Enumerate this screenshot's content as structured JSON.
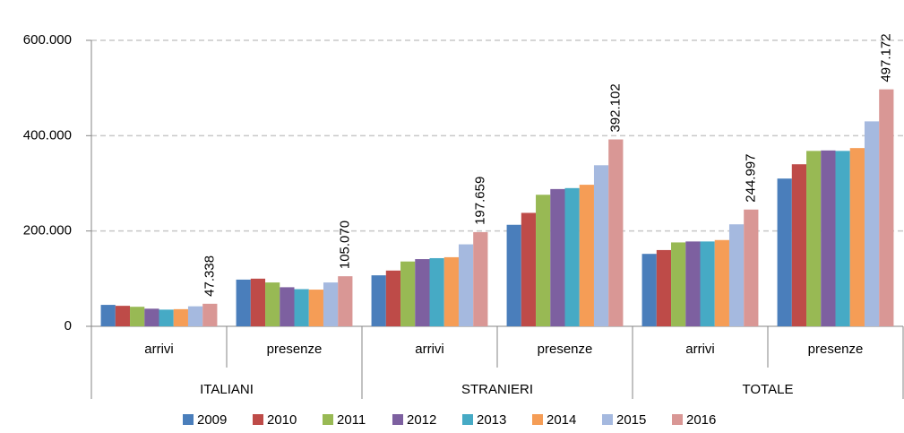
{
  "chart_data": {
    "type": "bar",
    "groups": [
      "ITALIANI",
      "STRANIERI",
      "TOTALE"
    ],
    "categories": [
      "arrivi",
      "presenze",
      "arrivi",
      "presenze",
      "arrivi",
      "presenze"
    ],
    "series": [
      {
        "name": "2009",
        "color": "#4a7ebb",
        "values": [
          45000,
          98000,
          107000,
          213000,
          152000,
          310000
        ]
      },
      {
        "name": "2010",
        "color": "#be4b48",
        "values": [
          43000,
          100000,
          117000,
          238000,
          160000,
          340000
        ]
      },
      {
        "name": "2011",
        "color": "#98b954",
        "values": [
          41000,
          92000,
          136000,
          276000,
          176000,
          368000
        ]
      },
      {
        "name": "2012",
        "color": "#7d60a0",
        "values": [
          37000,
          82000,
          141000,
          288000,
          178000,
          369000
        ]
      },
      {
        "name": "2013",
        "color": "#46aac5",
        "values": [
          35000,
          78000,
          143000,
          290000,
          178000,
          368000
        ]
      },
      {
        "name": "2014",
        "color": "#f59d56",
        "values": [
          36000,
          77000,
          145000,
          297000,
          181000,
          374000
        ]
      },
      {
        "name": "2015",
        "color": "#a5b9df",
        "values": [
          42000,
          92000,
          172000,
          338000,
          214000,
          430000
        ]
      },
      {
        "name": "2016",
        "color": "#d99795",
        "values": [
          47338,
          105070,
          197659,
          392102,
          244997,
          497172
        ],
        "value_labels": [
          "47.338",
          "105.070",
          "197.659",
          "392.102",
          "244.997",
          "497.172"
        ]
      }
    ],
    "ylim": [
      0,
      600000
    ],
    "yticks": [
      0,
      {
        "value": 200000,
        "label": "200.000"
      },
      {
        "value": 400000,
        "label": "400.000"
      },
      {
        "value": 600000,
        "label": "600.000"
      }
    ],
    "grid": true,
    "legend": "bottom"
  }
}
